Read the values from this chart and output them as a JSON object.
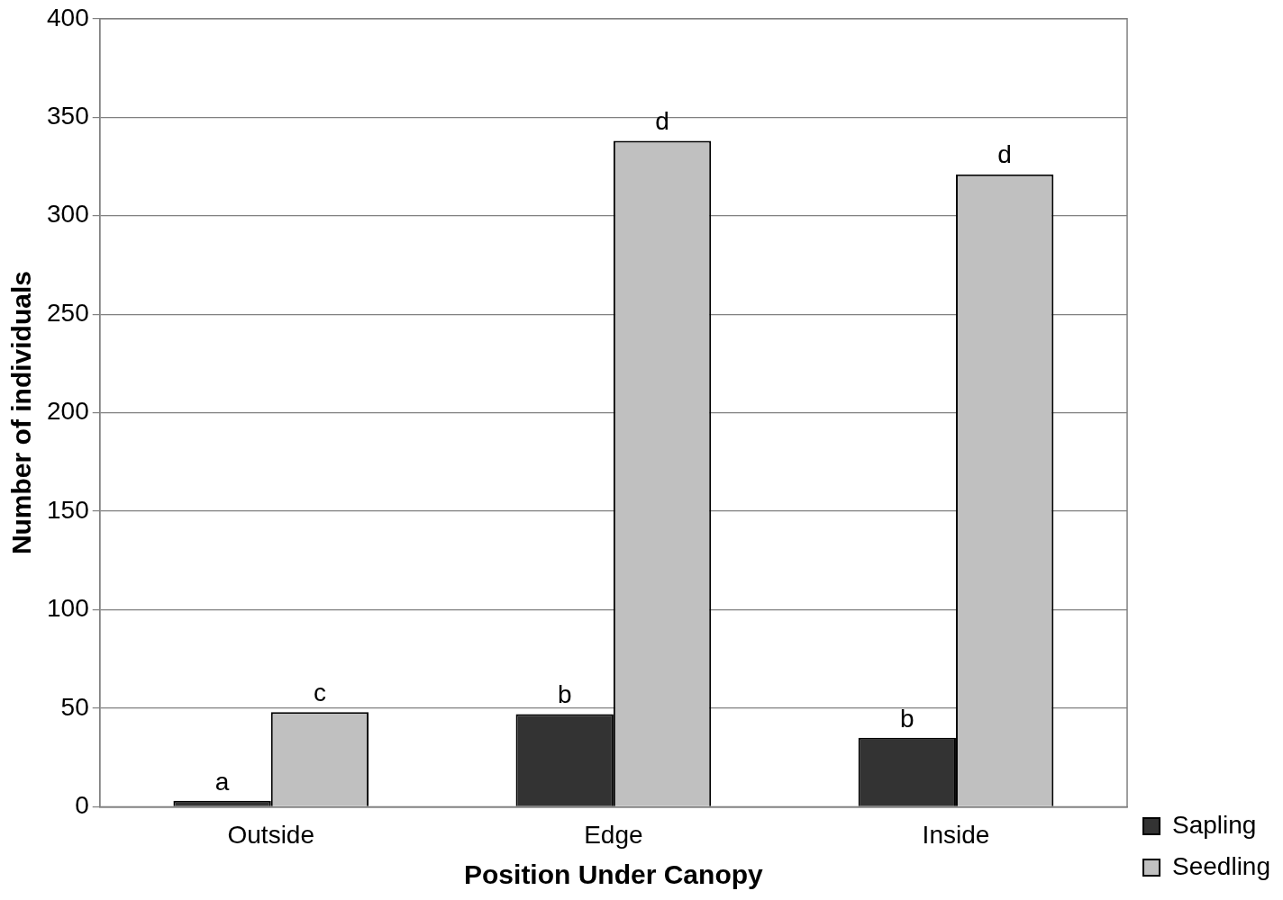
{
  "chart_data": {
    "type": "bar",
    "xlabel": "Position Under Canopy",
    "ylabel": "Number of individuals",
    "categories": [
      "Outside",
      "Edge",
      "Inside"
    ],
    "series": [
      {
        "name": "Sapling",
        "color": "#333333",
        "values": [
          3,
          47,
          35
        ],
        "value_labels": [
          "a",
          "b",
          "b"
        ]
      },
      {
        "name": "Seedling",
        "color": "#c0c0c0",
        "values": [
          48,
          338,
          321
        ],
        "value_labels": [
          "c",
          "d",
          "d"
        ]
      }
    ],
    "ylim": [
      0,
      400
    ],
    "yticks": [
      0,
      50,
      100,
      150,
      200,
      250,
      300,
      350,
      400
    ],
    "grid": "y",
    "legend": "bottom right"
  }
}
